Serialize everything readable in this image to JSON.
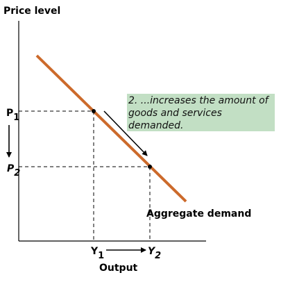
{
  "chart_data": {
    "type": "line",
    "title": "",
    "ylabel": "Price level",
    "xlabel": "Output",
    "series": [
      {
        "name": "Aggregate demand",
        "color": "#cc6a2b",
        "line_start": "upper-left",
        "line_end": "lower-right"
      }
    ],
    "points": [
      {
        "x_label": "Y",
        "x_sub": "1",
        "y_label": "P",
        "y_sub": "1"
      },
      {
        "x_label": "Y",
        "x_sub": "2",
        "y_label": "P",
        "y_sub": "2"
      }
    ],
    "annotation": "2. ...increases the amount of goods and services demanded.",
    "grid": false
  }
}
